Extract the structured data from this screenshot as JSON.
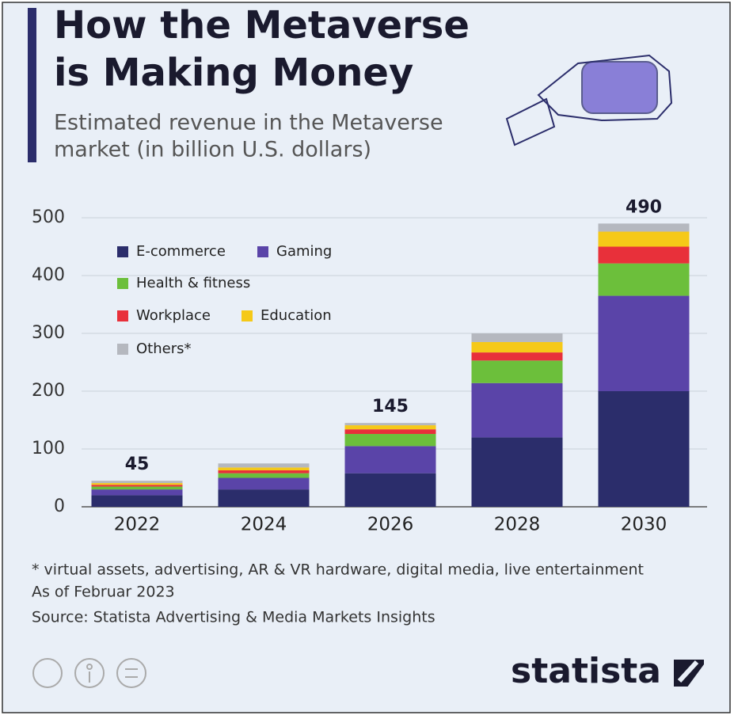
{
  "chart_data": {
    "type": "stacked_bar",
    "title": [
      "How the Metaverse",
      "is Making Money"
    ],
    "subtitle": [
      "Estimated revenue in the Metaverse",
      "market (in billion U.S. dollars)"
    ],
    "categories": [
      "2022",
      "2024",
      "2026",
      "2028",
      "2030"
    ],
    "series": [
      {
        "name": "E-commerce",
        "color": "#2b2d6b",
        "values": [
          20,
          30,
          58,
          120,
          200
        ]
      },
      {
        "name": "Gaming",
        "color": "#5a44a8",
        "values": [
          10,
          20,
          47,
          94,
          165
        ]
      },
      {
        "name": "Health & fitness",
        "color": "#6cbf3b",
        "values": [
          5,
          8,
          21,
          39,
          56
        ]
      },
      {
        "name": "Workplace",
        "color": "#e8303a",
        "values": [
          3,
          5,
          8,
          14,
          29
        ]
      },
      {
        "name": "Education",
        "color": "#f5c918",
        "values": [
          3,
          5,
          7,
          18,
          26
        ]
      },
      {
        "name": "Others*",
        "color": "#b5b8bf",
        "values": [
          4,
          7,
          4,
          15,
          14
        ]
      }
    ],
    "totals": [
      45,
      null,
      145,
      null,
      490
    ],
    "ylim": [
      0,
      500
    ],
    "yticks": [
      0,
      100,
      200,
      300,
      400,
      500
    ],
    "grid": true,
    "notes": [
      "* virtual assets, advertising, AR & VR hardware, digital media, live entertainment",
      "As of Februar 2023",
      "Source: Statista Advertising & Media Markets Insights"
    ],
    "brand": "statista"
  }
}
